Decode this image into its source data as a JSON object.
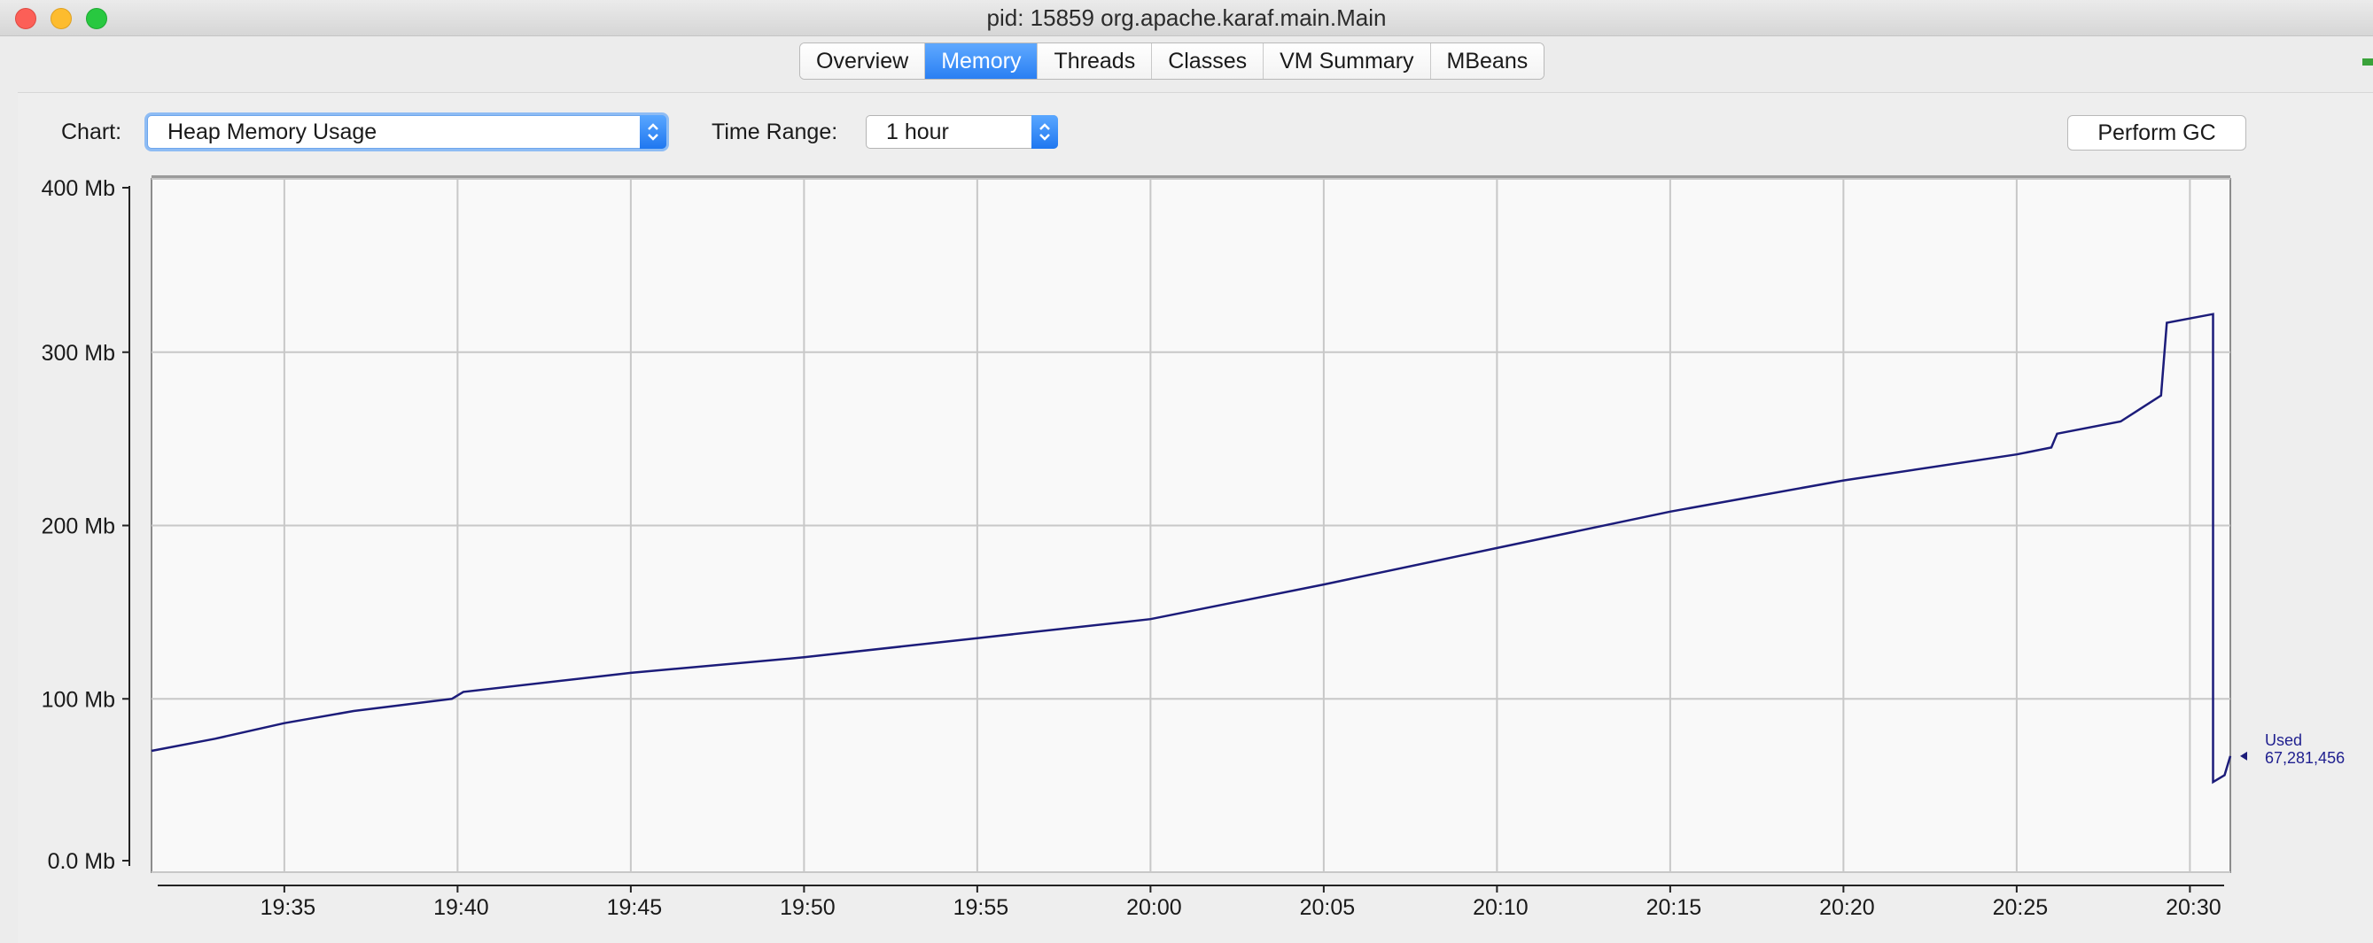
{
  "window": {
    "title": "pid: 15859 org.apache.karaf.main.Main"
  },
  "tabs": [
    {
      "label": "Overview",
      "active": false
    },
    {
      "label": "Memory",
      "active": true
    },
    {
      "label": "Threads",
      "active": false
    },
    {
      "label": "Classes",
      "active": false
    },
    {
      "label": "VM Summary",
      "active": false
    },
    {
      "label": "MBeans",
      "active": false
    }
  ],
  "controls": {
    "chart_label": "Chart:",
    "chart_value": "Heap Memory Usage",
    "time_range_label": "Time Range:",
    "time_range_value": "1 hour",
    "gc_button": "Perform GC"
  },
  "colors": {
    "line": "#1c1c7a",
    "accent": "#2a7ff3",
    "grid": "#c8c8c8"
  },
  "chart_data": {
    "type": "line",
    "title": "Heap Memory Usage",
    "y_unit": "Mb",
    "ylim": [
      0,
      400
    ],
    "yticks": [
      "0.0 Mb",
      "100 Mb",
      "200 Mb",
      "300 Mb",
      "400 Mb"
    ],
    "ytick_values": [
      0,
      100,
      200,
      300,
      400
    ],
    "xlim": [
      "19:31:10",
      "20:31:10"
    ],
    "xticks": [
      "19:35",
      "19:40",
      "19:45",
      "19:50",
      "19:55",
      "20:00",
      "20:05",
      "20:10",
      "20:15",
      "20:20",
      "20:25",
      "20:30"
    ],
    "grid": true,
    "series": [
      {
        "name": "Used",
        "x": [
          "19:31:10",
          "19:33:00",
          "19:35:00",
          "19:37:00",
          "19:39:50",
          "19:40:10",
          "19:45:00",
          "19:50:00",
          "19:55:00",
          "20:00:00",
          "20:05:00",
          "20:10:00",
          "20:15:00",
          "20:20:00",
          "20:25:00",
          "20:26:00",
          "20:26:10",
          "20:28:00",
          "20:29:10",
          "20:29:20",
          "20:30:40",
          "20:30:40",
          "20:30:50",
          "20:31:00",
          "20:31:10"
        ],
        "values": [
          70,
          77,
          86,
          93,
          100,
          104,
          115,
          124,
          135,
          146,
          166,
          187,
          208,
          226,
          241,
          245,
          253,
          260,
          275,
          317,
          322,
          52,
          54,
          56,
          67
        ]
      }
    ],
    "legend": {
      "label": "Used",
      "value": "67,281,456",
      "placement": "right"
    }
  }
}
